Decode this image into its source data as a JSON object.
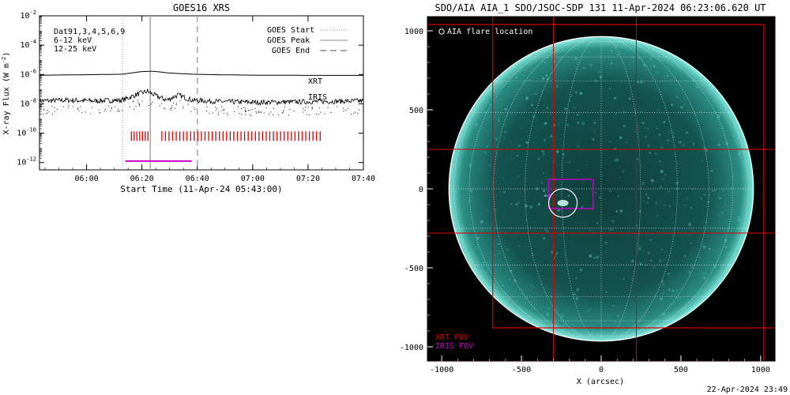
{
  "goes_panel": {
    "title": "GOES16 XRS",
    "legend": {
      "start": "GOES Start",
      "peak": "GOES Peak",
      "end": "GOES End"
    },
    "energy_labels": [
      {
        "text": "Dat91,3,4,5,6,9",
        "color": "#000000"
      },
      {
        "text": "6-12 keV",
        "color": "#e000e0"
      },
      {
        "text": "12-25 keV",
        "color": "#00cc00"
      }
    ],
    "series_labels": [
      {
        "text": "XRT",
        "color": "#dd0000"
      },
      {
        "text": "IRIS",
        "color": "#cc00cc"
      }
    ]
  },
  "aia_panel": {
    "title": "SDO/AIA AIA_1 SDO/JSOC-SDP 131 11-Apr-2024 06:23:06.620 UT",
    "legend": "AIA flare location",
    "xrt_label": "XRT FOV",
    "iris_label": "IRIS FOV",
    "xlabel": "X (arcsec)",
    "timestamp": "22-Apr-2024 23:49",
    "x_ticks": [
      "-1000",
      "-500",
      "0",
      "500",
      "1000"
    ],
    "y_ticks": [
      "1000",
      "500",
      "0",
      "-500",
      "-1000"
    ],
    "colors": {
      "disk": "#1b6b66",
      "limb": "#7fe8dc",
      "xrt": "#dd0000",
      "iris": "#cc00cc"
    }
  },
  "chart_data": [
    {
      "type": "line",
      "title": "GOES16 XRS",
      "xlabel": "Start Time (11-Apr-24 05:43:00)",
      "ylabel": "X-ray Flux (W m^-2)",
      "x_tick_labels": [
        "06:00",
        "06:20",
        "06:40",
        "07:00",
        "07:20",
        "07:40"
      ],
      "y_tick_labels": [
        "10^-12",
        "10^-10",
        "10^-8",
        "10^-6",
        "10^-4",
        "10^-2"
      ],
      "x_range_minutes_after_start": [
        0,
        117
      ],
      "ylim_log10": [
        -12.5,
        -2
      ],
      "goes_start_min": 30,
      "goes_peak_min": 40,
      "goes_end_min": 57,
      "series": [
        {
          "name": "",
          "color": "#000000",
          "log10_flux": [
            [
              0,
              -6.05
            ],
            [
              15,
              -6.02
            ],
            [
              30,
              -5.98
            ],
            [
              37,
              -5.8
            ],
            [
              41,
              -5.78
            ],
            [
              47,
              -5.9
            ],
            [
              55,
              -5.98
            ],
            [
              65,
              -6.02
            ],
            [
              80,
              -6.05
            ],
            [
              100,
              -6.06
            ],
            [
              117,
              -6.06
            ]
          ]
        },
        {
          "name": "",
          "color": "#000000",
          "log10_flux": [
            [
              0,
              -7.8
            ],
            [
              10,
              -7.75
            ],
            [
              20,
              -7.8
            ],
            [
              30,
              -7.75
            ],
            [
              36,
              -7.3
            ],
            [
              39,
              -7.15
            ],
            [
              42,
              -7.45
            ],
            [
              46,
              -7.75
            ],
            [
              50,
              -7.4
            ],
            [
              55,
              -7.75
            ],
            [
              65,
              -7.85
            ],
            [
              80,
              -7.9
            ],
            [
              100,
              -7.85
            ],
            [
              117,
              -7.8
            ]
          ]
        }
      ],
      "xrt_bars": {
        "log10_flux": -10.2,
        "intervals_min": [
          [
            33,
            39
          ],
          [
            44,
            102
          ]
        ]
      },
      "iris_line": {
        "log10_flux": -11.9,
        "interval_min": [
          31,
          55
        ]
      }
    },
    {
      "type": "image",
      "xlabel": "X (arcsec)",
      "x_range_arcsec": [
        -1090,
        1090
      ],
      "y_range_arcsec": [
        -1090,
        1090
      ],
      "solar_radius_arcsec": 955,
      "flare_location_arcsec": [
        -240,
        -90
      ],
      "xrt_fov_arcsec": [
        {
          "xmin": -1090,
          "xmax": 1020,
          "ymin": -1090,
          "ymax": 1040
        },
        {
          "xmin": -680,
          "xmax": 1090,
          "ymin": -880,
          "ymax": 1090
        }
      ],
      "xrt_grid_lines_arcsec": {
        "x": [
          -300,
          220
        ],
        "y": [
          250,
          -280
        ]
      },
      "iris_fov_arcsec": {
        "xmin": -330,
        "xmax": -50,
        "ymin": -125,
        "ymax": 60
      }
    }
  ]
}
